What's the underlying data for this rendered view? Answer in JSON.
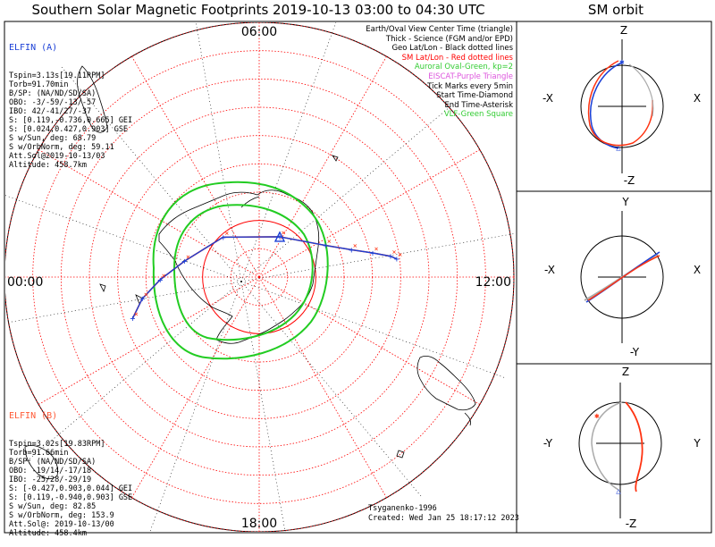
{
  "title": "Southern Solar Magnetic Footprints 2019-10-13 03:00 to 04:30 UTC",
  "sm_title": "SM orbit",
  "elfin_a": {
    "name": "ELFIN (A)",
    "color": "#1a3fd6",
    "lines": [
      "Tspin=3.13s[19.11RPM]",
      "Torb=91.70min",
      "B/SP: (NA/ND/SD/SA)",
      "OBO: -3/-59/-13/-57",
      "IBO: 42/-41/27/-37",
      "S: [0.119,-0.736,0.665] GEI",
      "S: [0.024,0.427,0.903] GSE",
      "S w/Sun, deg: 68.79",
      "S w/OrbNorm, deg: 59.11",
      "Att.Sol@2019-10-13/03",
      "Altitude: 458.7km"
    ]
  },
  "elfin_b": {
    "name": "ELFIN (B)",
    "color": "#ff5a36",
    "lines": [
      "Tspin=3.02s[19.83RPM]",
      "Torb=91.66min",
      "B/SP: (NA/ND/SD/SA)",
      "OBO: -19/14/-17/18",
      "IBO: -25/28/-29/19",
      "S: [-0.427,0.903,0.044] GEI",
      "S: [0.119,-0.940,0.903] GSE",
      "S w/Sun, deg: 82.85",
      "S w/OrbNorm, deg: 153.9",
      "Att.Sol@: 2019-10-13/00",
      "Altitude: 458.4km"
    ]
  },
  "legend": [
    {
      "text": "Earth/Oval View Center Time (triangle)",
      "color": "#000000"
    },
    {
      "text": "Thick - Science (FGM and/or EPD)",
      "color": "#000000"
    },
    {
      "text": "Geo Lat/Lon - Black dotted lines",
      "color": "#000000"
    },
    {
      "text": "SM Lat/Lon - Red dotted lines",
      "color": "#ff0000"
    },
    {
      "text": "Auroral Oval-Green, kp=2",
      "color": "#33cc33"
    },
    {
      "text": "EISCAT-Purple Triangle",
      "color": "#dd55dd"
    },
    {
      "text": "Tick Marks every 5min",
      "color": "#000000"
    },
    {
      "text": "Start Time-Diamond",
      "color": "#000000"
    },
    {
      "text": "End Time-Asterisk",
      "color": "#000000"
    },
    {
      "text": "VLF-Green Square",
      "color": "#33cc33"
    }
  ],
  "credits": {
    "line1": "Tsyganenko-1996",
    "line2": "Created: Wed Jan 25 18:17:12 2023"
  },
  "map_labels": {
    "top": "06:00",
    "bottom": "18:00",
    "left": "00:00",
    "right": "12:00"
  },
  "sm_panels": [
    {
      "up": "Z",
      "down": "-Z",
      "left": "-X",
      "right": "X"
    },
    {
      "up": "Y",
      "down": "-Y",
      "left": "-X",
      "right": "X"
    },
    {
      "up": "Z",
      "down": "-Z",
      "left": "-Y",
      "right": "Y"
    }
  ],
  "colors": {
    "orbit_a": "#1a3fd6",
    "orbit_b": "#ff3311",
    "oval": "#22cc22",
    "sm_grid": "#ff0000",
    "geo_grid": "#000000"
  },
  "chart_data": {
    "type": "scatter",
    "projection": "south polar, SM coordinates",
    "sm_latitude_rings_deg": [
      -90,
      -80,
      -70,
      -60,
      -50,
      -40,
      -30,
      -20,
      -10,
      0
    ],
    "sm_mlt_meridians_h": [
      0,
      2,
      4,
      6,
      8,
      10,
      12,
      14,
      16,
      18,
      20,
      22
    ],
    "footprint_a": {
      "name": "ELFIN (A)",
      "mlt_hours": [
        22.8,
        23.3,
        23.9,
        0.8,
        3.2,
        7.8,
        10.3,
        10.9,
        11.2,
        11.4,
        11.5
      ],
      "sm_lat_deg": [
        -43,
        -48,
        -55,
        -63,
        -71,
        -74,
        -64,
        -56,
        -49,
        -43,
        -41
      ]
    },
    "footprint_b": {
      "name": "ELFIN (B)",
      "mlt_hours": [
        22.8,
        23.3,
        23.9,
        0.8,
        3.2,
        7.8,
        10.3,
        10.9,
        11.2,
        11.4,
        11.5
      ],
      "sm_lat_deg": [
        -43,
        -48,
        -55,
        -63,
        -71,
        -74,
        -64,
        -56,
        -49,
        -43,
        -41
      ]
    }
  }
}
